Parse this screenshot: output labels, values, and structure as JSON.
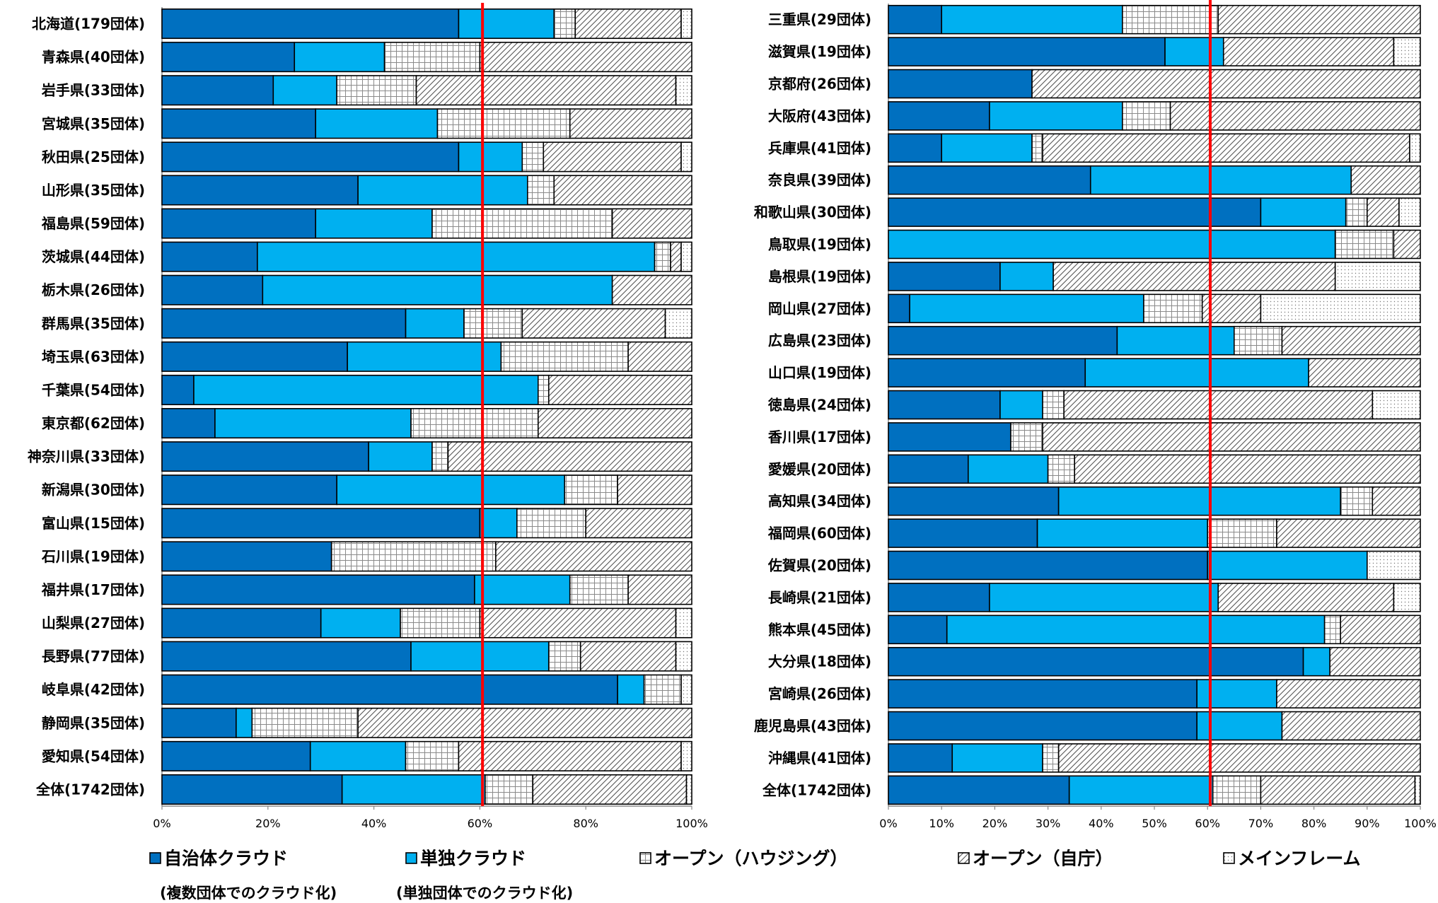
{
  "colors": {
    "multi_cloud": "#0070C0",
    "single_cloud": "#00B0F0",
    "housing": "#FFFFFF",
    "self": "#FFFFFF",
    "mainframe": "#FFFFFF",
    "threshold": "#FF0000",
    "outline": "#000000"
  },
  "legend": [
    {
      "label": "自治体クラウド",
      "pattern": "solid-dark"
    },
    {
      "label": "単独クラウド",
      "pattern": "solid-light"
    },
    {
      "label": "オープン（ハウジング）",
      "pattern": "grid"
    },
    {
      "label": "オープン（自庁）",
      "pattern": "hatch"
    },
    {
      "label": "メインフレーム",
      "pattern": "dots"
    }
  ],
  "legend_notes": [
    "(複数団体でのクラウド化)",
    "(単独団体でのクラウド化)"
  ],
  "chart_data": [
    {
      "type": "bar",
      "orientation": "horizontal",
      "stacked": true,
      "xlim": [
        0,
        100
      ],
      "x_ticks": [
        "0%",
        "20%",
        "40%",
        "60%",
        "80%",
        "100%"
      ],
      "x_tick_values": [
        0,
        20,
        40,
        60,
        80,
        100
      ],
      "reference_line": 60.5,
      "categories": [
        "北海道(179団体)",
        "青森県(40団体)",
        "岩手県(33団体)",
        "宮城県(35団体)",
        "秋田県(25団体)",
        "山形県(35団体)",
        "福島県(59団体)",
        "茨城県(44団体)",
        "栃木県(26団体)",
        "群馬県(35団体)",
        "埼玉県(63団体)",
        "千葉県(54団体)",
        "東京都(62団体)",
        "神奈川県(33団体)",
        "新潟県(30団体)",
        "富山県(15団体)",
        "石川県(19団体)",
        "福井県(17団体)",
        "山梨県(27団体)",
        "長野県(77団体)",
        "岐阜県(42団体)",
        "静岡県(35団体)",
        "愛知県(54団体)",
        "全体(1742団体)"
      ],
      "series": [
        {
          "name": "自治体クラウド",
          "values": [
            56,
            25,
            21,
            29,
            56,
            37,
            29,
            18,
            19,
            46,
            35,
            6,
            10,
            39,
            33,
            60,
            32,
            59,
            30,
            47,
            86,
            14,
            28,
            34
          ]
        },
        {
          "name": "単独クラウド",
          "values": [
            18,
            17,
            12,
            23,
            12,
            32,
            22,
            75,
            66,
            11,
            29,
            65,
            37,
            12,
            43,
            7,
            0,
            18,
            15,
            26,
            5,
            3,
            18,
            27
          ]
        },
        {
          "name": "オープン（ハウジング）",
          "values": [
            4,
            18,
            15,
            25,
            4,
            5,
            34,
            3,
            0,
            11,
            24,
            2,
            24,
            3,
            10,
            13,
            31,
            11,
            15,
            6,
            7,
            20,
            10,
            9
          ]
        },
        {
          "name": "オープン（自庁）",
          "values": [
            20,
            40,
            49,
            23,
            26,
            26,
            15,
            2,
            15,
            27,
            12,
            27,
            29,
            46,
            14,
            20,
            37,
            12,
            37,
            18,
            0,
            63,
            42,
            29
          ]
        },
        {
          "name": "メインフレーム",
          "values": [
            2,
            0,
            3,
            0,
            2,
            0,
            0,
            2,
            0,
            5,
            0,
            0,
            0,
            0,
            0,
            0,
            0,
            0,
            3,
            3,
            2,
            0,
            2,
            1
          ]
        }
      ]
    },
    {
      "type": "bar",
      "orientation": "horizontal",
      "stacked": true,
      "xlim": [
        0,
        100
      ],
      "x_ticks": [
        "0%",
        "10%",
        "20%",
        "30%",
        "40%",
        "50%",
        "60%",
        "70%",
        "80%",
        "90%",
        "100%"
      ],
      "x_tick_values": [
        0,
        10,
        20,
        30,
        40,
        50,
        60,
        70,
        80,
        90,
        100
      ],
      "reference_line": 60.5,
      "categories": [
        "三重県(29団体)",
        "滋賀県(19団体)",
        "京都府(26団体)",
        "大阪府(43団体)",
        "兵庫県(41団体)",
        "奈良県(39団体)",
        "和歌山県(30団体)",
        "鳥取県(19団体)",
        "島根県(19団体)",
        "岡山県(27団体)",
        "広島県(23団体)",
        "山口県(19団体)",
        "徳島県(24団体)",
        "香川県(17団体)",
        "愛媛県(20団体)",
        "高知県(34団体)",
        "福岡県(60団体)",
        "佐賀県(20団体)",
        "長崎県(21団体)",
        "熊本県(45団体)",
        "大分県(18団体)",
        "宮崎県(26団体)",
        "鹿児島県(43団体)",
        "沖縄県(41団体)",
        "全体(1742団体)"
      ],
      "series": [
        {
          "name": "自治体クラウド",
          "values": [
            10,
            52,
            27,
            19,
            10,
            38,
            70,
            0,
            21,
            4,
            43,
            37,
            21,
            23,
            15,
            32,
            28,
            60,
            19,
            11,
            78,
            58,
            58,
            12,
            34
          ]
        },
        {
          "name": "単独クラウド",
          "values": [
            34,
            11,
            0,
            25,
            17,
            49,
            16,
            84,
            10,
            44,
            22,
            42,
            8,
            0,
            15,
            53,
            32,
            30,
            43,
            71,
            5,
            15,
            16,
            17,
            27
          ]
        },
        {
          "name": "オープン（ハウジング）",
          "values": [
            18,
            0,
            0,
            9,
            2,
            0,
            4,
            11,
            0,
            11,
            9,
            0,
            4,
            6,
            5,
            6,
            13,
            0,
            0,
            3,
            0,
            0,
            0,
            3,
            9
          ]
        },
        {
          "name": "オープン（自庁）",
          "values": [
            38,
            32,
            73,
            47,
            69,
            13,
            6,
            5,
            53,
            11,
            26,
            21,
            58,
            71,
            65,
            9,
            27,
            0,
            33,
            15,
            17,
            27,
            26,
            68,
            29
          ]
        },
        {
          "name": "メインフレーム",
          "values": [
            0,
            5,
            0,
            0,
            2,
            0,
            4,
            0,
            16,
            30,
            0,
            0,
            9,
            0,
            0,
            0,
            0,
            10,
            5,
            0,
            0,
            0,
            0,
            0,
            1
          ]
        }
      ]
    }
  ]
}
